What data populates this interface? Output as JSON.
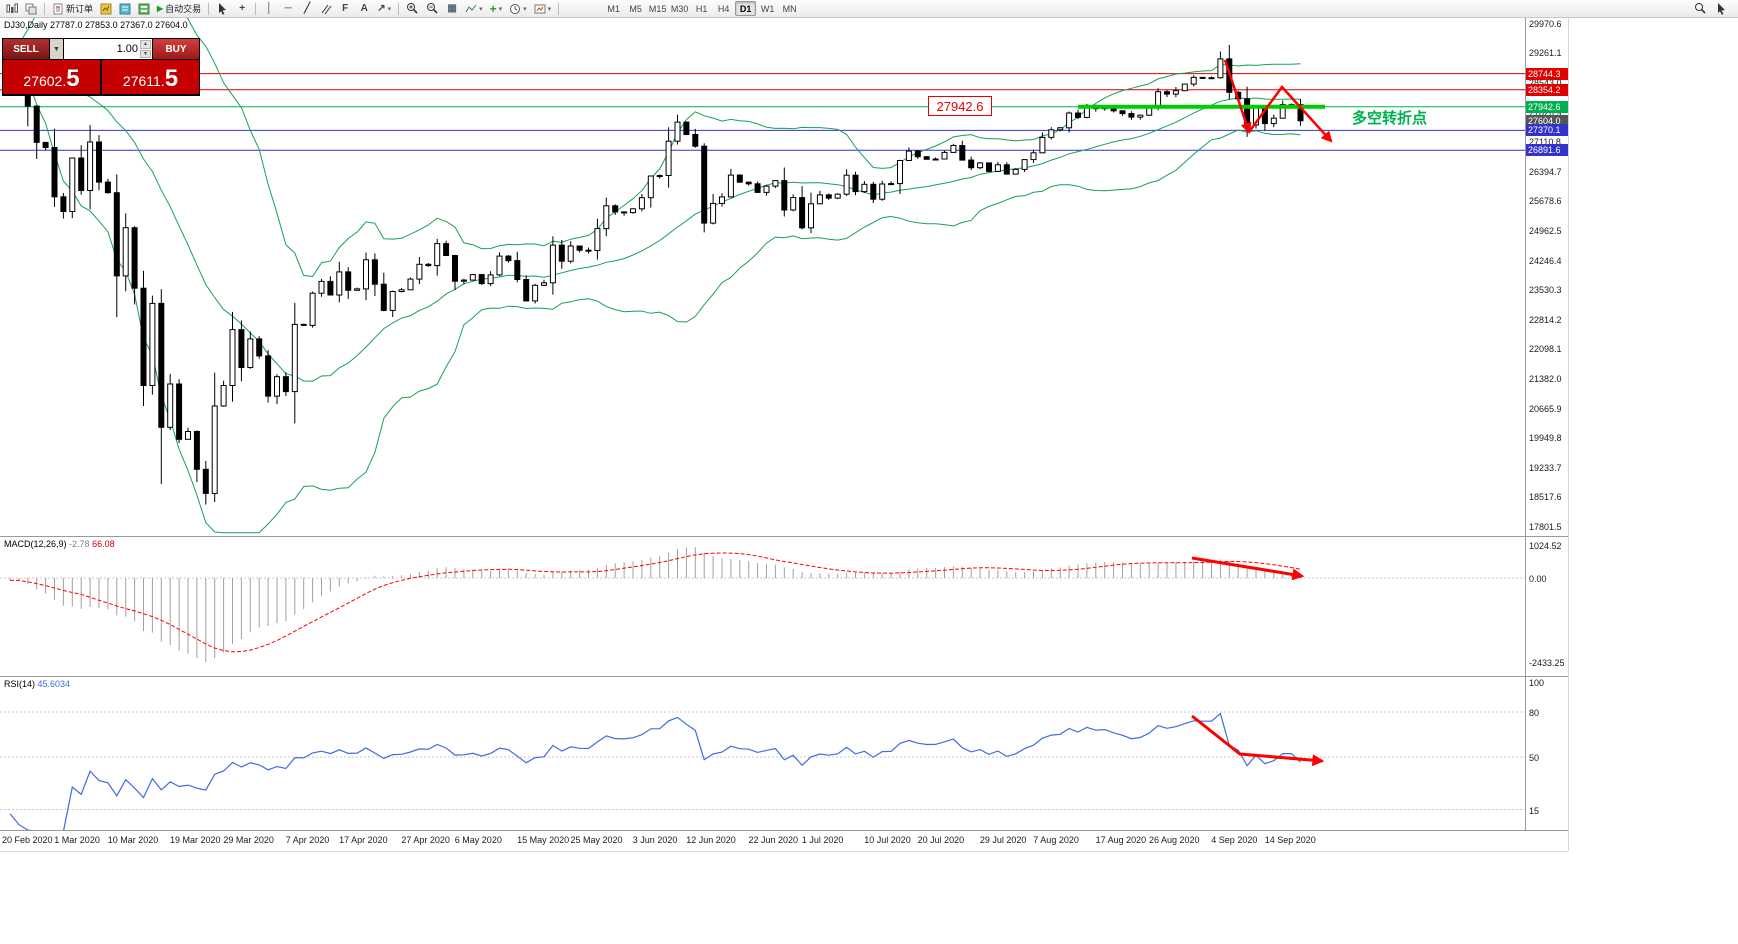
{
  "toolbar": {
    "new_order": "新订单",
    "auto_trading": "自动交易",
    "timeframes": [
      "M1",
      "M5",
      "M15",
      "M30",
      "H1",
      "H4",
      "D1",
      "W1",
      "MN"
    ],
    "active_timeframe": "D1"
  },
  "symbol_info": {
    "text": "DJ30,Daily  27787.0 27853.0 27367.0 27604.0"
  },
  "trade_panel": {
    "sell_label": "SELL",
    "buy_label": "BUY",
    "volume": "1.00",
    "sell_price_main": "27602.",
    "sell_price_big": "5",
    "buy_price_main": "27611.",
    "buy_price_big": "5"
  },
  "annotations": {
    "price_callout": "27942.6",
    "turning_point": "多空转折点"
  },
  "macd": {
    "name": "MACD(12,26,9)",
    "value_main": "-2.78",
    "value_signal": "66.08",
    "axis": [
      "1024.52",
      "0.00",
      "-2433.25"
    ]
  },
  "rsi": {
    "name": "RSI(14)",
    "value": "45.6034",
    "levels": [
      100,
      80,
      50,
      15
    ]
  },
  "price_axis": {
    "scale_labels": [
      {
        "label": "29970.6",
        "value": 29970.6
      },
      {
        "label": "29261.1",
        "value": 29261.1
      },
      {
        "label": "28543.0",
        "value": 28543.0
      },
      {
        "label": "27826.9",
        "value": 27826.9
      },
      {
        "label": "27110.8",
        "value": 27110.8
      },
      {
        "label": "26394.7",
        "value": 26394.7
      },
      {
        "label": "25678.6",
        "value": 25678.6
      },
      {
        "label": "24962.5",
        "value": 24962.5
      },
      {
        "label": "24246.4",
        "value": 24246.4
      },
      {
        "label": "23530.3",
        "value": 23530.3
      },
      {
        "label": "22814.2",
        "value": 22814.2
      },
      {
        "label": "22098.1",
        "value": 22098.1
      },
      {
        "label": "21382.0",
        "value": 21382.0
      },
      {
        "label": "20665.9",
        "value": 20665.9
      },
      {
        "label": "19949.8",
        "value": 19949.8
      },
      {
        "label": "19233.7",
        "value": 19233.7
      },
      {
        "label": "18517.6",
        "value": 18517.6
      },
      {
        "label": "17801.5",
        "value": 17801.5
      }
    ],
    "badges": [
      {
        "label": "28744.3",
        "value": 28744.3,
        "bg": "#e00000"
      },
      {
        "label": "28354.2",
        "value": 28354.2,
        "bg": "#e00000"
      },
      {
        "label": "27942.6",
        "value": 27942.6,
        "bg": "#00b050"
      },
      {
        "label": "27604.0",
        "value": 27604.0,
        "bg": "#555555"
      },
      {
        "label": "27370.1",
        "value": 27370.1,
        "bg": "#3333cc"
      },
      {
        "label": "26891.6",
        "value": 26891.6,
        "bg": "#3333cc"
      }
    ]
  },
  "date_axis": [
    "20 Feb 2020",
    "1 Mar 2020",
    "10 Mar 2020",
    "19 Mar 2020",
    "29 Mar 2020",
    "7 Apr 2020",
    "17 Apr 2020",
    "27 Apr 2020",
    "6 May 2020",
    "15 May 2020",
    "25 May 2020",
    "3 Jun 2020",
    "12 Jun 2020",
    "22 Jun 2020",
    "1 Jul 2020",
    "10 Jul 2020",
    "20 Jul 2020",
    "29 Jul 2020",
    "7 Aug 2020",
    "17 Aug 2020",
    "26 Aug 2020",
    "4 Sep 2020",
    "14 Sep 2020"
  ],
  "colors": {
    "bollinger": "#1aa053",
    "candle_up": "#ffffff",
    "candle_down": "#000000",
    "candle_border": "#000000",
    "macd_histogram": "#a0a0a0",
    "macd_signal": "#ff0000",
    "rsi_line": "#4169e1",
    "arrow": "#ff0000",
    "trend_segment": "#00cc00",
    "green_line": "#00b050",
    "red_line": "#e00000",
    "blue_line": "#3333cc"
  },
  "chart_data": {
    "type": "candlestick",
    "symbol": "DJ30",
    "period": "Daily",
    "ohlc_display": {
      "open": "27787.0",
      "high": "27853.0",
      "low": "27367.0",
      "close": "27604.0"
    },
    "indicators": [
      "Bollinger Bands",
      "MACD(12,26,9)",
      "RSI(14)"
    ],
    "y_range": [
      17560,
      30110
    ],
    "horizontal_lines": [
      {
        "price": 28744.3,
        "color": "#e00000"
      },
      {
        "price": 28354.2,
        "color": "#e00000"
      },
      {
        "price": 27942.6,
        "color": "#00b050"
      },
      {
        "price": 27370.1,
        "color": "#3333cc"
      },
      {
        "price": 26891.6,
        "color": "#3333cc"
      }
    ],
    "closes": [
      29219,
      28992,
      27960,
      27081,
      26957,
      25766,
      25409,
      26703,
      25917,
      27090,
      26121,
      25864,
      23851,
      25018,
      23553,
      21200,
      23185,
      20188,
      21237,
      19898,
      20087,
      19173,
      18591,
      20704,
      21200,
      22552,
      21636,
      22327,
      21917,
      20943,
      21413,
      21052,
      22679,
      22653,
      23433,
      23719,
      23390,
      23949,
      23504,
      23537,
      24242,
      23650,
      23018,
      23475,
      23515,
      23775,
      24133,
      24101,
      24633,
      24345,
      23723,
      23749,
      23883,
      23664,
      23875,
      24331,
      24221,
      23764,
      23247,
      23625,
      23685,
      24597,
      24206,
      24575,
      24474,
      24465,
      24995,
      25548,
      25400,
      25383,
      25475,
      25742,
      26269,
      26281,
      27110,
      27572,
      27272,
      26989,
      25128,
      25605,
      25763,
      26289,
      26119,
      26080,
      25871,
      26024,
      26156,
      25445,
      25745,
      25015,
      25595,
      25812,
      25734,
      25827,
      26287,
      25890,
      26067,
      25706,
      26075,
      26085,
      26642,
      26870,
      26734,
      26671,
      26680,
      26840,
      27005,
      26652,
      26469,
      26584,
      26379,
      26539,
      26313,
      26428,
      26664,
      26828,
      27201,
      27386,
      27433,
      27791,
      27686,
      27976,
      27896,
      27931,
      27844,
      27778,
      27692,
      27739,
      27930,
      28308,
      28248,
      28331,
      28492,
      28653,
      28645,
      28646,
      29100,
      28293,
      28133,
      27501,
      27940,
      27535,
      27665,
      27994,
      27996,
      27604
    ]
  }
}
